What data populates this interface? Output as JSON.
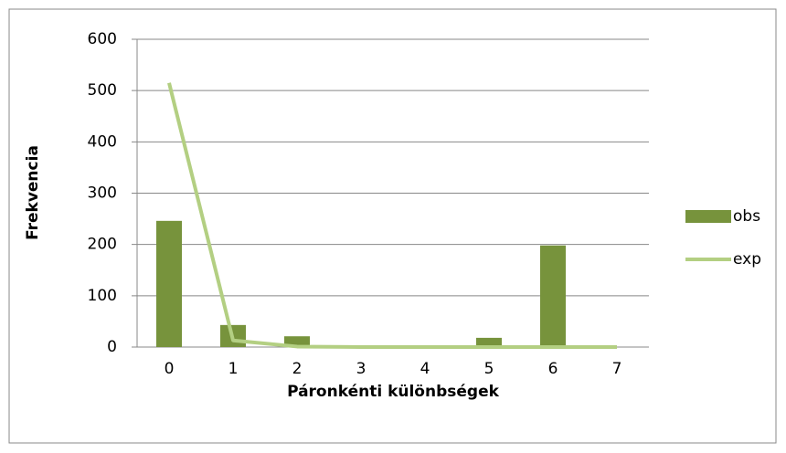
{
  "chart_data": {
    "type": "bar",
    "x_label": "Páronkénti különbségek",
    "y_label": "Frekvencia",
    "categories": [
      "0",
      "1",
      "2",
      "3",
      "4",
      "5",
      "6",
      "7"
    ],
    "series": [
      {
        "name": "obs",
        "type": "bar",
        "color": "#77933c",
        "values": [
          246,
          43,
          21,
          0,
          0,
          18,
          198,
          0
        ]
      },
      {
        "name": "exp",
        "type": "line",
        "color": "#b3cf82",
        "values": [
          515,
          13,
          1,
          0,
          0,
          0,
          0,
          0
        ]
      }
    ],
    "ylim": [
      0,
      600
    ],
    "yticks": [
      0,
      100,
      200,
      300,
      400,
      500,
      600
    ],
    "grid": true,
    "legend": "right"
  }
}
